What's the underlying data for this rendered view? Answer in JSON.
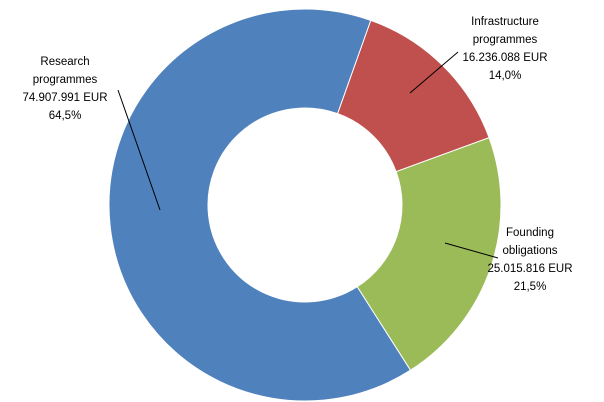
{
  "chart_data": {
    "type": "donut",
    "categories": [
      "Infrastructure programmes",
      "Founding obligations",
      "Research programmes"
    ],
    "values": [
      16236088,
      25015816,
      74907991
    ],
    "value_labels": [
      "16.236.088 EUR",
      "25.015.816 EUR",
      "74.907.991 EUR"
    ],
    "percentages": [
      14.0,
      21.5,
      64.5
    ],
    "percentage_labels": [
      "14,0%",
      "21,5%",
      "64,5%"
    ],
    "colors": [
      "#c0504d",
      "#9bbb59",
      "#4f81bd"
    ]
  }
}
